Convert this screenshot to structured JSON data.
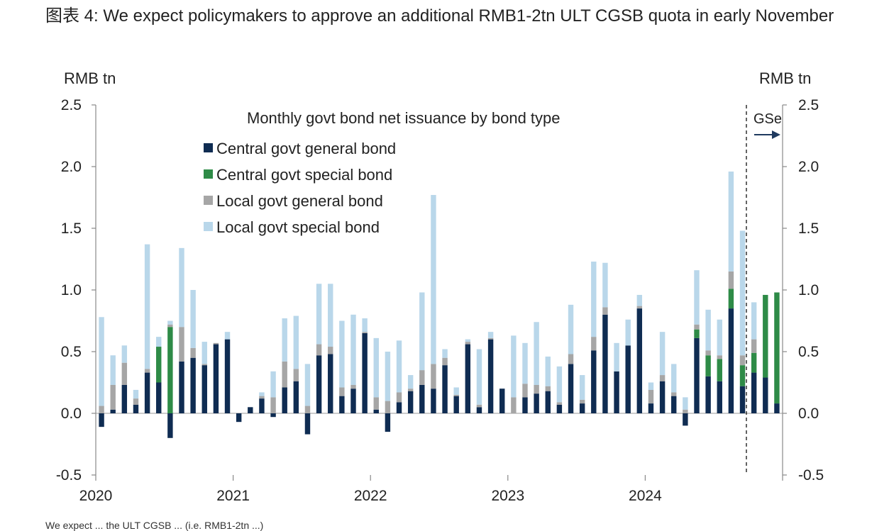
{
  "figure": {
    "label": "图表 4:",
    "title": "We expect policymakers to approve an additional RMB1-2tn ULT CGSB quota in early November"
  },
  "chart_data": {
    "type": "bar",
    "stacked": true,
    "title": "Monthly govt bond net issuance by bond type",
    "y_unit_left": "RMB tn",
    "y_unit_right": "RMB tn",
    "ylim": [
      -0.5,
      2.5
    ],
    "yticks": [
      "2.5",
      "2.0",
      "1.5",
      "1.0",
      "0.5",
      "0.0",
      "-0.5"
    ],
    "ytick_values": [
      2.5,
      2.0,
      1.5,
      1.0,
      0.5,
      0.0,
      -0.5
    ],
    "x_year_labels": [
      "2020",
      "2021",
      "2022",
      "2023",
      "2024"
    ],
    "months_start": "2020-01",
    "forecast_start_month": "2024-10",
    "annotation": "GSe",
    "grid": false,
    "legend_position": "top-left",
    "colors": {
      "Central govt general bond": "#0f2c52",
      "Central govt special bond": "#2e8b47",
      "Local govt general bond": "#a6a6a6",
      "Local govt special bond": "#b9d7ea"
    },
    "series": [
      {
        "name": "Central govt general bond",
        "values": [
          -0.11,
          0.03,
          0.23,
          0.07,
          0.33,
          0.25,
          -0.2,
          0.42,
          0.45,
          0.39,
          0.56,
          0.6,
          -0.07,
          0.05,
          0.12,
          -0.03,
          0.21,
          0.26,
          -0.17,
          0.47,
          0.48,
          0.14,
          0.2,
          0.65,
          0.03,
          -0.15,
          0.09,
          0.18,
          0.23,
          0.2,
          0.39,
          0.14,
          0.56,
          0.05,
          0.6,
          0.2,
          0,
          0.13,
          0.16,
          0.18,
          0.07,
          0.4,
          0.08,
          0.51,
          0.8,
          0.34,
          0.55,
          0.85,
          0.08,
          0.26,
          0.14,
          -0.1,
          0.61,
          0.3,
          0.26,
          0.85,
          0.22,
          0.33,
          0.29,
          0.08
        ]
      },
      {
        "name": "Central govt special bond",
        "values": [
          0,
          0,
          0,
          0,
          0,
          0.29,
          0.7,
          0,
          0,
          0,
          0,
          0,
          0,
          0,
          0,
          0,
          0,
          0,
          0,
          0,
          0,
          0,
          0,
          0,
          0,
          0,
          0,
          0,
          0,
          0,
          0,
          0,
          0,
          0,
          0,
          0,
          0,
          0,
          0,
          0,
          0,
          0,
          0,
          0,
          0,
          0,
          0,
          0,
          0,
          0,
          0,
          0,
          0.07,
          0.17,
          0.18,
          0.16,
          0.17,
          0.16,
          0.67,
          0.9
        ]
      },
      {
        "name": "Local govt general bond",
        "values": [
          0.06,
          0.2,
          0.18,
          0.05,
          0.03,
          0,
          0.02,
          0.28,
          0.08,
          0.01,
          0.01,
          0,
          0,
          0,
          0.02,
          0.13,
          0.21,
          0.1,
          0.06,
          0.09,
          0.06,
          0.07,
          0.03,
          0.01,
          0.1,
          0.1,
          0.08,
          0.02,
          0.12,
          0.2,
          0.06,
          0.01,
          0.02,
          0.02,
          0.01,
          0,
          0.13,
          0.11,
          0.07,
          0.04,
          0.02,
          0.08,
          0.03,
          0.11,
          0.06,
          0,
          0,
          0.02,
          0.11,
          0.05,
          0.03,
          0.03,
          0.04,
          0.04,
          0.03,
          0.14,
          0.08,
          0.11,
          0,
          0
        ]
      },
      {
        "name": "Local govt special bond",
        "values": [
          0.72,
          0.24,
          0.14,
          0.07,
          1.01,
          0.08,
          0.03,
          0.64,
          0.47,
          0.18,
          0,
          0.06,
          0,
          0,
          0.03,
          0.21,
          0.35,
          0.43,
          0.34,
          0.49,
          0.51,
          0.54,
          0.57,
          0.11,
          0.48,
          0.4,
          0.42,
          0.11,
          0.63,
          1.37,
          0.07,
          0.06,
          0.02,
          0.45,
          0.05,
          0,
          0.5,
          0.33,
          0.51,
          0.24,
          0.29,
          0.4,
          0.2,
          0.61,
          0.36,
          0.23,
          0.21,
          0.09,
          0.06,
          0.35,
          0.23,
          0.1,
          0.44,
          0.33,
          0.29,
          0.81,
          1.01,
          0.3,
          0,
          0
        ]
      }
    ]
  },
  "footnote": "We expect ... the ULT CGSB ... (i.e. RMB1-2tn ...)"
}
